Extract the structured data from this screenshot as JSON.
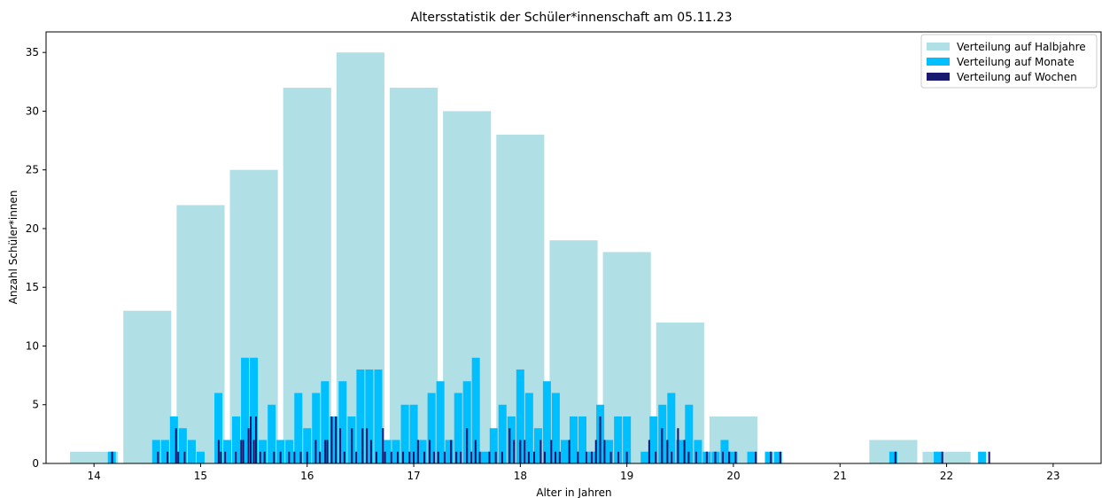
{
  "chart_data": {
    "type": "bar",
    "title": "Altersstatistik der Schüler*innenschaft am 05.11.23",
    "xlabel": "Alter in Jahren",
    "ylabel": "Anzahl Schüler*innen",
    "xlim": [
      13.55,
      23.45
    ],
    "ylim": [
      0,
      36.75
    ],
    "xticks": [
      14,
      15,
      16,
      17,
      18,
      19,
      20,
      21,
      22,
      23
    ],
    "yticks": [
      0,
      5,
      10,
      15,
      20,
      25,
      30,
      35
    ],
    "grid": false,
    "legend_position": "top-right",
    "series": [
      {
        "name": "Verteilung auf Halbjahre",
        "color": "#b0dfe5",
        "bin_width": 0.5,
        "x": [
          14.0,
          14.5,
          15.0,
          15.5,
          16.0,
          16.5,
          17.0,
          17.5,
          18.0,
          18.5,
          19.0,
          19.5,
          20.0,
          21.5,
          22.0
        ],
        "values": [
          1,
          13,
          22,
          25,
          32,
          35,
          32,
          30,
          28,
          19,
          18,
          12,
          4,
          2,
          1
        ]
      },
      {
        "name": "Verteilung auf Monate",
        "color": "#00bfff",
        "bin_width": 0.0833,
        "x": [
          14.167,
          14.583,
          14.667,
          14.75,
          14.833,
          14.917,
          15.0,
          15.167,
          15.25,
          15.333,
          15.417,
          15.5,
          15.583,
          15.667,
          15.75,
          15.833,
          15.917,
          16.0,
          16.083,
          16.167,
          16.25,
          16.333,
          16.417,
          16.5,
          16.583,
          16.667,
          16.75,
          16.833,
          16.917,
          17.0,
          17.083,
          17.167,
          17.25,
          17.333,
          17.417,
          17.5,
          17.583,
          17.667,
          17.75,
          17.833,
          17.917,
          18.0,
          18.083,
          18.167,
          18.25,
          18.333,
          18.417,
          18.5,
          18.583,
          18.667,
          18.75,
          18.833,
          18.917,
          19.0,
          19.167,
          19.25,
          19.333,
          19.417,
          19.5,
          19.583,
          19.667,
          19.75,
          19.833,
          19.917,
          20.0,
          20.167,
          20.333,
          20.417,
          21.5,
          21.917,
          22.333
        ],
        "values": [
          1,
          2,
          2,
          4,
          3,
          2,
          1,
          6,
          2,
          4,
          9,
          9,
          2,
          5,
          2,
          2,
          6,
          3,
          6,
          7,
          4,
          7,
          4,
          8,
          8,
          8,
          2,
          2,
          5,
          5,
          2,
          6,
          7,
          2,
          6,
          7,
          9,
          1,
          3,
          5,
          4,
          8,
          6,
          3,
          7,
          6,
          2,
          4,
          4,
          1,
          5,
          2,
          4,
          4,
          1,
          4,
          5,
          6,
          2,
          5,
          2,
          1,
          1,
          2,
          1,
          1,
          1,
          1,
          1,
          1,
          1
        ]
      },
      {
        "name": "Verteilung auf Wochen",
        "color": "#191970",
        "bin_width": 0.0192,
        "x": [
          14.17,
          14.6,
          14.69,
          14.77,
          14.79,
          14.85,
          15.17,
          15.19,
          15.23,
          15.33,
          15.38,
          15.4,
          15.45,
          15.47,
          15.5,
          15.52,
          15.56,
          15.6,
          15.69,
          15.75,
          15.83,
          15.88,
          15.94,
          16.0,
          16.08,
          16.12,
          16.17,
          16.19,
          16.23,
          16.27,
          16.31,
          16.35,
          16.42,
          16.46,
          16.52,
          16.56,
          16.6,
          16.65,
          16.71,
          16.73,
          16.79,
          16.85,
          16.9,
          16.96,
          17.0,
          17.04,
          17.1,
          17.15,
          17.19,
          17.23,
          17.29,
          17.35,
          17.4,
          17.44,
          17.5,
          17.54,
          17.58,
          17.62,
          17.71,
          17.77,
          17.83,
          17.9,
          17.94,
          18.0,
          18.04,
          18.08,
          18.13,
          18.19,
          18.23,
          18.29,
          18.33,
          18.37,
          18.46,
          18.54,
          18.62,
          18.67,
          18.71,
          18.75,
          18.79,
          18.85,
          18.92,
          19.0,
          19.21,
          19.27,
          19.33,
          19.38,
          19.42,
          19.48,
          19.54,
          19.58,
          19.65,
          19.75,
          19.83,
          19.9,
          19.96,
          20.02,
          20.21,
          20.35,
          20.44,
          21.52,
          21.96,
          22.4
        ],
        "values": [
          1,
          1,
          1,
          3,
          1,
          1,
          2,
          1,
          1,
          1,
          2,
          2,
          3,
          4,
          2,
          4,
          1,
          1,
          1,
          1,
          1,
          1,
          1,
          1,
          2,
          1,
          2,
          2,
          4,
          4,
          3,
          1,
          3,
          1,
          3,
          3,
          2,
          1,
          3,
          1,
          1,
          1,
          1,
          1,
          1,
          2,
          1,
          2,
          1,
          1,
          1,
          2,
          1,
          1,
          3,
          1,
          2,
          1,
          1,
          1,
          1,
          3,
          2,
          2,
          2,
          1,
          1,
          2,
          1,
          2,
          1,
          1,
          2,
          1,
          1,
          1,
          2,
          4,
          2,
          1,
          1,
          1,
          2,
          1,
          3,
          2,
          1,
          3,
          2,
          1,
          1,
          1,
          1,
          1,
          1,
          1,
          1,
          1,
          1,
          1,
          1,
          1
        ]
      }
    ]
  }
}
